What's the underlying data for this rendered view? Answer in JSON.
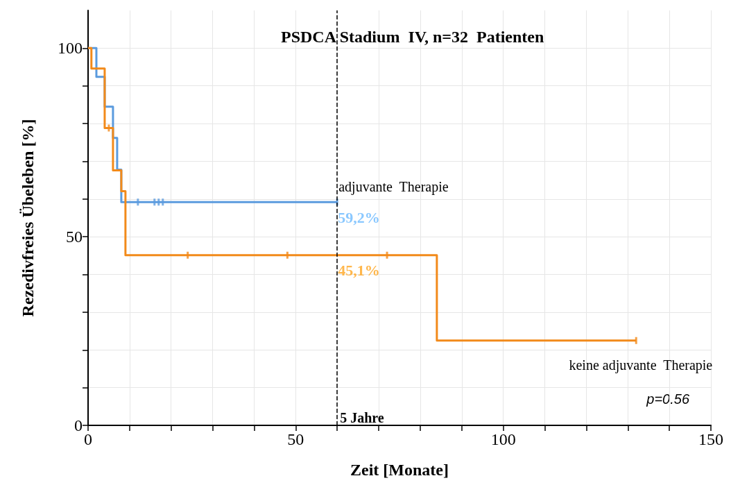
{
  "chart_data": {
    "type": "step",
    "title": "PSDCA Stadium  IV, n=32  Patienten",
    "xlabel": "Zeit [Monate]",
    "ylabel": "Rezedivfreies Übeleben [%]",
    "series": [
      {
        "name": "adjuvante  Therapie",
        "color": "#5b9bde",
        "x": [
          0,
          2,
          4,
          6,
          7,
          8,
          60
        ],
        "values": [
          100,
          92.4,
          84.5,
          76.2,
          67.8,
          59.2,
          59.2
        ]
      },
      {
        "name": "keine adjuvante  Therapie",
        "color": "#f28a1a",
        "x": [
          0,
          0.8,
          4,
          6,
          8,
          9,
          84,
          132
        ],
        "values": [
          100,
          94.6,
          78.8,
          67.6,
          62.1,
          45.1,
          22.5,
          22.5
        ]
      },
      {
        "type": "scatter",
        "color": "#5b9bde",
        "x": [
          12,
          16,
          17,
          18,
          60
        ],
        "values": [
          59.2,
          59.2,
          59.2,
          59.2,
          59.2
        ]
      },
      {
        "type": "scatter",
        "color": "#f28a1a",
        "x": [
          5,
          24,
          48,
          72,
          132
        ],
        "values": [
          78.8,
          45.1,
          45.1,
          45.1,
          22.5
        ]
      }
    ],
    "xlim": [
      0,
      150
    ],
    "ylim": [
      0,
      110
    ],
    "xticks": [
      0,
      {
        "value": 10,
        "label": null
      },
      {
        "value": 20,
        "label": null
      },
      {
        "value": 30,
        "label": null
      },
      {
        "value": 40,
        "label": null
      },
      50,
      {
        "value": 60,
        "label": null
      },
      {
        "value": 70,
        "label": null
      },
      {
        "value": 80,
        "label": null
      },
      {
        "value": 90,
        "label": null
      },
      100,
      {
        "value": 110,
        "label": null
      },
      {
        "value": 120,
        "label": null
      },
      {
        "value": 130,
        "label": null
      },
      {
        "value": 140,
        "label": null
      },
      150
    ],
    "yticks": [
      0,
      {
        "value": 10,
        "label": null
      },
      {
        "value": 20,
        "label": null
      },
      {
        "value": 30,
        "label": null
      },
      {
        "value": 40,
        "label": null
      },
      50,
      {
        "value": 60,
        "label": null
      },
      {
        "value": 70,
        "label": null
      },
      {
        "value": 80,
        "label": null
      },
      {
        "value": 90,
        "label": null
      },
      100
    ],
    "grid": true,
    "ref_lines": [
      {
        "axis": "x",
        "value": 60,
        "label": "5 Jahre",
        "line_style": "dashed",
        "color": "#000000"
      }
    ],
    "annotations": [
      {
        "text": "59,2%",
        "x": 60,
        "y": 59.2
      },
      {
        "text": "45,1%",
        "x": 60,
        "y": 45.1
      },
      "p=0.56"
    ]
  }
}
